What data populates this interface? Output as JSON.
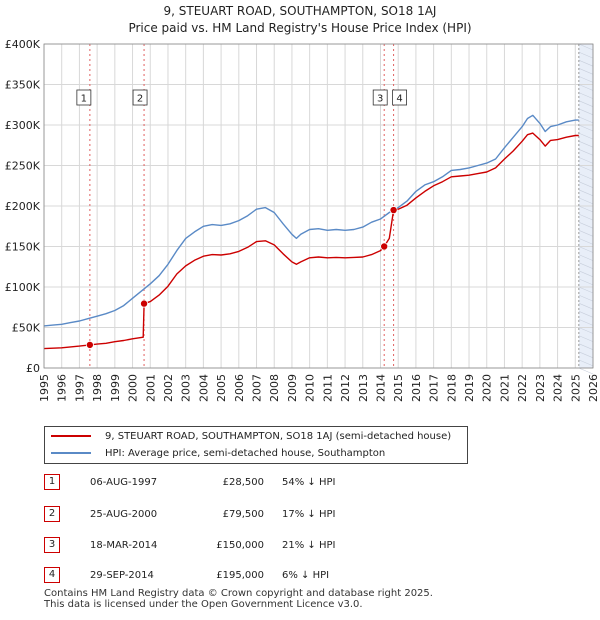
{
  "title": "9, STEUART ROAD, SOUTHAMPTON, SO18 1AJ",
  "subtitle": "Price paid vs. HM Land Registry's House Price Index (HPI)",
  "colors": {
    "property": "#cc0000",
    "hpi": "#5a8ac6",
    "marker_line": "#e06060",
    "shade": "#e8eef8"
  },
  "chart_data": {
    "type": "line",
    "title": "9, STEUART ROAD, SOUTHAMPTON, SO18 1AJ",
    "subtitle": "Price paid vs. HM Land Registry's House Price Index (HPI)",
    "xlim": [
      1995,
      2026
    ],
    "ylim": [
      0,
      400000
    ],
    "y_ticks": [
      {
        "value": 0,
        "label": "£0"
      },
      {
        "value": 50000,
        "label": "£50K"
      },
      {
        "value": 100000,
        "label": "£100K"
      },
      {
        "value": 150000,
        "label": "£150K"
      },
      {
        "value": 200000,
        "label": "£200K"
      },
      {
        "value": 250000,
        "label": "£250K"
      },
      {
        "value": 300000,
        "label": "£300K"
      },
      {
        "value": 350000,
        "label": "£350K"
      },
      {
        "value": 400000,
        "label": "£400K"
      }
    ],
    "x_ticks": [
      "1995",
      "1996",
      "1997",
      "1998",
      "1999",
      "2000",
      "2001",
      "2002",
      "2003",
      "2004",
      "2005",
      "2006",
      "2007",
      "2008",
      "2009",
      "2010",
      "2011",
      "2012",
      "2013",
      "2014",
      "2015",
      "2016",
      "2017",
      "2018",
      "2019",
      "2020",
      "2021",
      "2022",
      "2023",
      "2024",
      "2025",
      "2026"
    ],
    "grid": true,
    "shaded_from": 2025.2,
    "series": [
      {
        "name": "HPI: Average price, semi-detached house, Southampton",
        "color": "#5a8ac6",
        "x": [
          1995,
          1995.5,
          1996,
          1996.5,
          1997,
          1997.5,
          1998,
          1998.5,
          1999,
          1999.5,
          2000,
          2000.5,
          2001,
          2001.5,
          2002,
          2002.5,
          2003,
          2003.5,
          2004,
          2004.5,
          2005,
          2005.5,
          2006,
          2006.5,
          2007,
          2007.5,
          2008,
          2008.5,
          2009,
          2009.25,
          2009.5,
          2010,
          2010.5,
          2011,
          2011.5,
          2012,
          2012.5,
          2013,
          2013.5,
          2014,
          2014.5,
          2015,
          2015.5,
          2016,
          2016.5,
          2017,
          2017.5,
          2018,
          2018.5,
          2019,
          2019.5,
          2020,
          2020.5,
          2021,
          2021.5,
          2022,
          2022.3,
          2022.6,
          2023,
          2023.3,
          2023.6,
          2024,
          2024.5,
          2025,
          2025.2
        ],
        "y": [
          52000,
          53000,
          54000,
          56000,
          58000,
          61000,
          64000,
          67000,
          71000,
          77000,
          86000,
          95000,
          104000,
          114000,
          128000,
          145000,
          160000,
          168000,
          175000,
          177000,
          176000,
          178000,
          182000,
          188000,
          196000,
          198000,
          192000,
          178000,
          165000,
          160000,
          165000,
          171000,
          172000,
          170000,
          171000,
          170000,
          171000,
          174000,
          180000,
          184000,
          192000,
          198000,
          206000,
          218000,
          226000,
          230000,
          236000,
          244000,
          245000,
          247000,
          250000,
          253000,
          258000,
          272000,
          285000,
          298000,
          308000,
          312000,
          302000,
          292000,
          298000,
          300000,
          304000,
          306000,
          306000
        ]
      },
      {
        "name": "9, STEUART ROAD, SOUTHAMPTON, SO18 1AJ (semi-detached house)",
        "color": "#cc0000",
        "x": [
          1995,
          1995.5,
          1996,
          1996.5,
          1997,
          1997.59,
          1998,
          1998.5,
          1999,
          1999.5,
          2000,
          2000.6,
          2000.65,
          2001,
          2001.5,
          2002,
          2002.5,
          2003,
          2003.5,
          2004,
          2004.5,
          2005,
          2005.5,
          2006,
          2006.5,
          2007,
          2007.5,
          2008,
          2008.5,
          2009,
          2009.25,
          2009.5,
          2010,
          2010.5,
          2011,
          2011.5,
          2012,
          2012.5,
          2013,
          2013.5,
          2014,
          2014.21,
          2014.5,
          2014.74,
          2015,
          2015.5,
          2016,
          2016.5,
          2017,
          2017.5,
          2018,
          2018.5,
          2019,
          2019.5,
          2020,
          2020.5,
          2021,
          2021.5,
          2022,
          2022.3,
          2022.6,
          2023,
          2023.3,
          2023.6,
          2024,
          2024.5,
          2025,
          2025.2
        ],
        "y": [
          24000,
          24500,
          25000,
          26000,
          27000,
          28500,
          29500,
          30500,
          32500,
          34000,
          36000,
          38000,
          79500,
          82000,
          90000,
          101000,
          116000,
          126000,
          133000,
          138000,
          140000,
          139500,
          141000,
          144000,
          149000,
          156000,
          157000,
          152000,
          141000,
          131000,
          128000,
          131000,
          136000,
          137000,
          136000,
          136500,
          136000,
          136500,
          137000,
          140000,
          145000,
          150000,
          160000,
          195000,
          196000,
          201000,
          210000,
          218000,
          225000,
          230000,
          236000,
          237000,
          238000,
          240000,
          242000,
          247000,
          258000,
          268000,
          280000,
          288000,
          290000,
          282000,
          274000,
          281000,
          282000,
          285000,
          287000,
          287000
        ]
      }
    ],
    "sales": [
      {
        "id": "1",
        "x": 1997.59,
        "y": 28500
      },
      {
        "id": "2",
        "x": 2000.65,
        "y": 79500
      },
      {
        "id": "3",
        "x": 2014.21,
        "y": 150000
      },
      {
        "id": "4",
        "x": 2014.74,
        "y": 195000
      }
    ]
  },
  "legend": {
    "property_label": "9, STEUART ROAD, SOUTHAMPTON, SO18 1AJ (semi-detached house)",
    "hpi_label": "HPI: Average price, semi-detached house, Southampton"
  },
  "transactions": [
    {
      "num": "1",
      "date": "06-AUG-1997",
      "price": "£28,500",
      "hpi": "54% ↓ HPI"
    },
    {
      "num": "2",
      "date": "25-AUG-2000",
      "price": "£79,500",
      "hpi": "17% ↓ HPI"
    },
    {
      "num": "3",
      "date": "18-MAR-2014",
      "price": "£150,000",
      "hpi": "21% ↓ HPI"
    },
    {
      "num": "4",
      "date": "29-SEP-2014",
      "price": "£195,000",
      "hpi": "6% ↓ HPI"
    }
  ],
  "footer": {
    "line1": "Contains HM Land Registry data © Crown copyright and database right 2025.",
    "line2": "This data is licensed under the Open Government Licence v3.0."
  }
}
